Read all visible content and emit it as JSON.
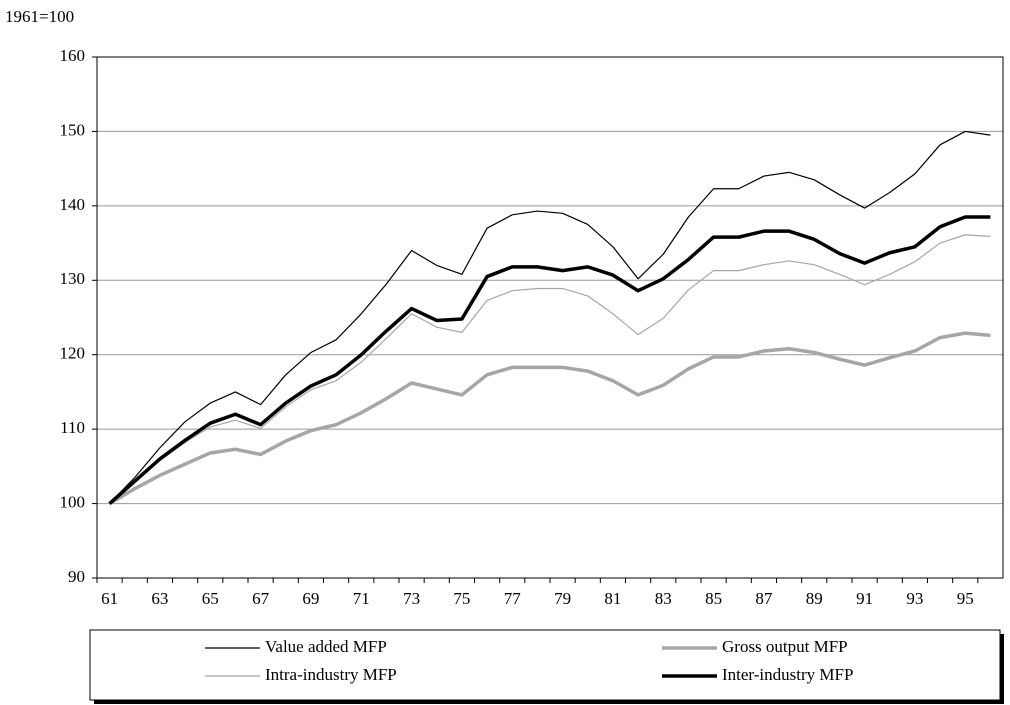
{
  "chart_data": {
    "type": "line",
    "subtitle": "1961=100",
    "categories": [
      "61",
      null,
      "63",
      null,
      "65",
      null,
      "67",
      null,
      "69",
      null,
      "71",
      null,
      "73",
      null,
      "75",
      null,
      "77",
      null,
      "79",
      null,
      "81",
      null,
      "83",
      null,
      "85",
      null,
      "87",
      null,
      "89",
      null,
      "91",
      null,
      "93",
      null,
      "95",
      null
    ],
    "series": [
      {
        "name": "Value added MFP",
        "color": "#000000",
        "line_width": 1.2,
        "values": [
          100,
          103.5,
          107.5,
          111,
          113.5,
          115,
          113.3,
          117.3,
          120.3,
          122,
          125.5,
          129.5,
          134,
          132,
          130.8,
          137,
          138.8,
          139.3,
          139,
          137.5,
          134.5,
          130.2,
          133.5,
          138.5,
          142.3,
          142.3,
          144,
          144.5,
          143.5,
          141.5,
          139.7,
          141.8,
          144.3,
          148.2,
          150,
          149.5
        ]
      },
      {
        "name": "Gross output MFP",
        "color": "#a6a6a6",
        "line_width": 3.5,
        "values": [
          100,
          102,
          103.8,
          105.3,
          106.8,
          107.3,
          106.6,
          108.4,
          109.8,
          110.6,
          112.2,
          114.1,
          116.2,
          115.4,
          114.6,
          117.3,
          118.3,
          118.3,
          118.3,
          117.8,
          116.5,
          114.6,
          115.9,
          118.1,
          119.7,
          119.7,
          120.5,
          120.8,
          120.3,
          119.4,
          118.6,
          119.6,
          120.5,
          122.3,
          122.9,
          122.6
        ]
      },
      {
        "name": "Intra-industry MFP",
        "color": "#a6a6a6",
        "line_width": 1.2,
        "values": [
          100,
          102.8,
          105.8,
          108.2,
          110.3,
          111.2,
          110.1,
          113,
          115.3,
          116.5,
          119,
          122.2,
          125.5,
          123.7,
          123,
          127.3,
          128.6,
          128.9,
          128.9,
          127.9,
          125.5,
          122.7,
          124.9,
          128.7,
          131.3,
          131.3,
          132.1,
          132.6,
          132.1,
          130.8,
          129.4,
          130.8,
          132.5,
          135,
          136.1,
          135.9
        ]
      },
      {
        "name": "Inter-industry MFP",
        "color": "#000000",
        "line_width": 3.5,
        "values": [
          100,
          103,
          106,
          108.5,
          110.8,
          112,
          110.6,
          113.5,
          115.8,
          117.3,
          120,
          123.2,
          126.2,
          124.6,
          124.8,
          130.5,
          131.8,
          131.8,
          131.3,
          131.8,
          130.7,
          128.6,
          130.2,
          132.8,
          135.8,
          135.8,
          136.6,
          136.6,
          135.5,
          133.6,
          132.3,
          133.7,
          134.5,
          137.2,
          138.5,
          138.5
        ]
      }
    ],
    "ylim": [
      90,
      160
    ],
    "yticks": [
      90,
      100,
      110,
      120,
      130,
      140,
      150,
      160
    ],
    "grid": true,
    "legend": "bottom"
  }
}
